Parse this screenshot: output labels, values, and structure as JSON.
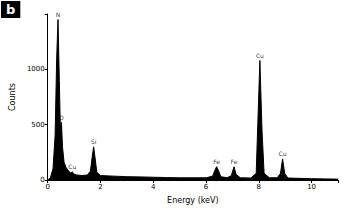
{
  "chart_data": {
    "type": "area",
    "title": "b",
    "x_label": "Energy (keV)",
    "y_label": "Counts",
    "x": [
      0.0,
      0.1,
      0.2,
      0.28,
      0.34,
      0.39,
      0.44,
      0.48,
      0.52,
      0.56,
      0.62,
      0.7,
      0.8,
      0.88,
      0.93,
      0.98,
      1.1,
      1.3,
      1.5,
      1.62,
      1.68,
      1.74,
      1.8,
      1.86,
      2.0,
      2.5,
      3.0,
      3.5,
      4.0,
      4.5,
      5.0,
      5.5,
      6.0,
      6.25,
      6.32,
      6.4,
      6.48,
      6.56,
      6.8,
      6.96,
      7.06,
      7.14,
      7.3,
      7.7,
      7.9,
      7.96,
      8.04,
      8.12,
      8.2,
      8.4,
      8.7,
      8.82,
      8.9,
      8.98,
      9.1,
      9.5,
      10.0,
      10.5,
      11.0
    ],
    "values": [
      0,
      20,
      100,
      400,
      1100,
      1450,
      900,
      450,
      520,
      300,
      160,
      110,
      80,
      60,
      75,
      55,
      45,
      40,
      45,
      80,
      200,
      300,
      190,
      70,
      40,
      35,
      30,
      28,
      25,
      22,
      20,
      20,
      20,
      35,
      80,
      120,
      80,
      30,
      20,
      40,
      120,
      50,
      20,
      18,
      60,
      500,
      1080,
      450,
      60,
      20,
      20,
      60,
      190,
      60,
      18,
      15,
      12,
      10,
      8
    ],
    "color": "#000000",
    "annotations": [
      {
        "text": "N",
        "x": 0.39,
        "y": 1450
      },
      {
        "text": "O",
        "x": 0.52,
        "y": 520
      },
      {
        "text": "Cu",
        "x": 0.93,
        "y": 75
      },
      {
        "text": "Si",
        "x": 1.74,
        "y": 300
      },
      {
        "text": "Fe",
        "x": 6.4,
        "y": 120
      },
      {
        "text": "Fe",
        "x": 7.06,
        "y": 120
      },
      {
        "text": "Cu",
        "x": 8.04,
        "y": 1080
      },
      {
        "text": "Cu",
        "x": 8.9,
        "y": 190
      }
    ],
    "xlim": [
      0,
      11
    ],
    "xticks": [
      0,
      2,
      4,
      6,
      8,
      10
    ],
    "ylim": [
      0,
      1500
    ],
    "yticks": [
      0,
      500,
      1000
    ],
    "grid": false
  }
}
